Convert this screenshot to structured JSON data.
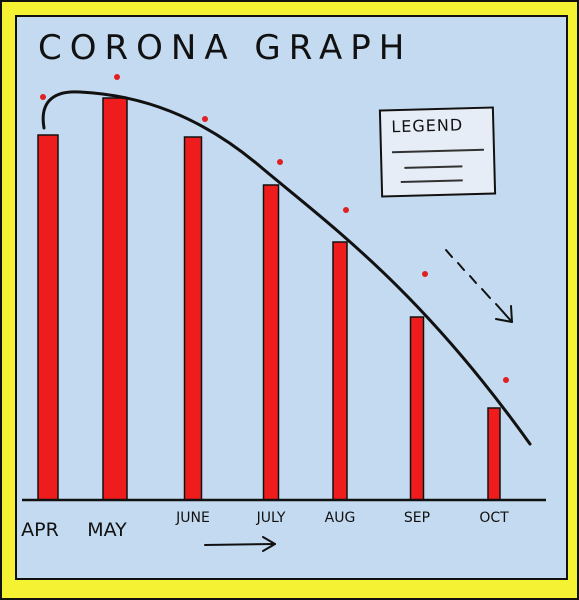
{
  "chart_data": {
    "type": "bar",
    "title": "CORONA GRAPH",
    "categories": [
      "APR",
      "MAY",
      "JUNE",
      "JULY",
      "AUG",
      "SEP",
      "OCT"
    ],
    "values": [
      365,
      402,
      363,
      315,
      258,
      183,
      92
    ],
    "markers": [
      403,
      423,
      381,
      338,
      290,
      226,
      120
    ],
    "trend_line": true,
    "legend": {
      "title": "LEGEND",
      "placement": "top-right"
    },
    "ylim": [
      0,
      430
    ],
    "colors": {
      "bars": "#ee1c1c",
      "markers": "#e02020",
      "trend": "#111111",
      "background": "#c4daf0",
      "border": "#f5f233"
    },
    "grid": false
  }
}
